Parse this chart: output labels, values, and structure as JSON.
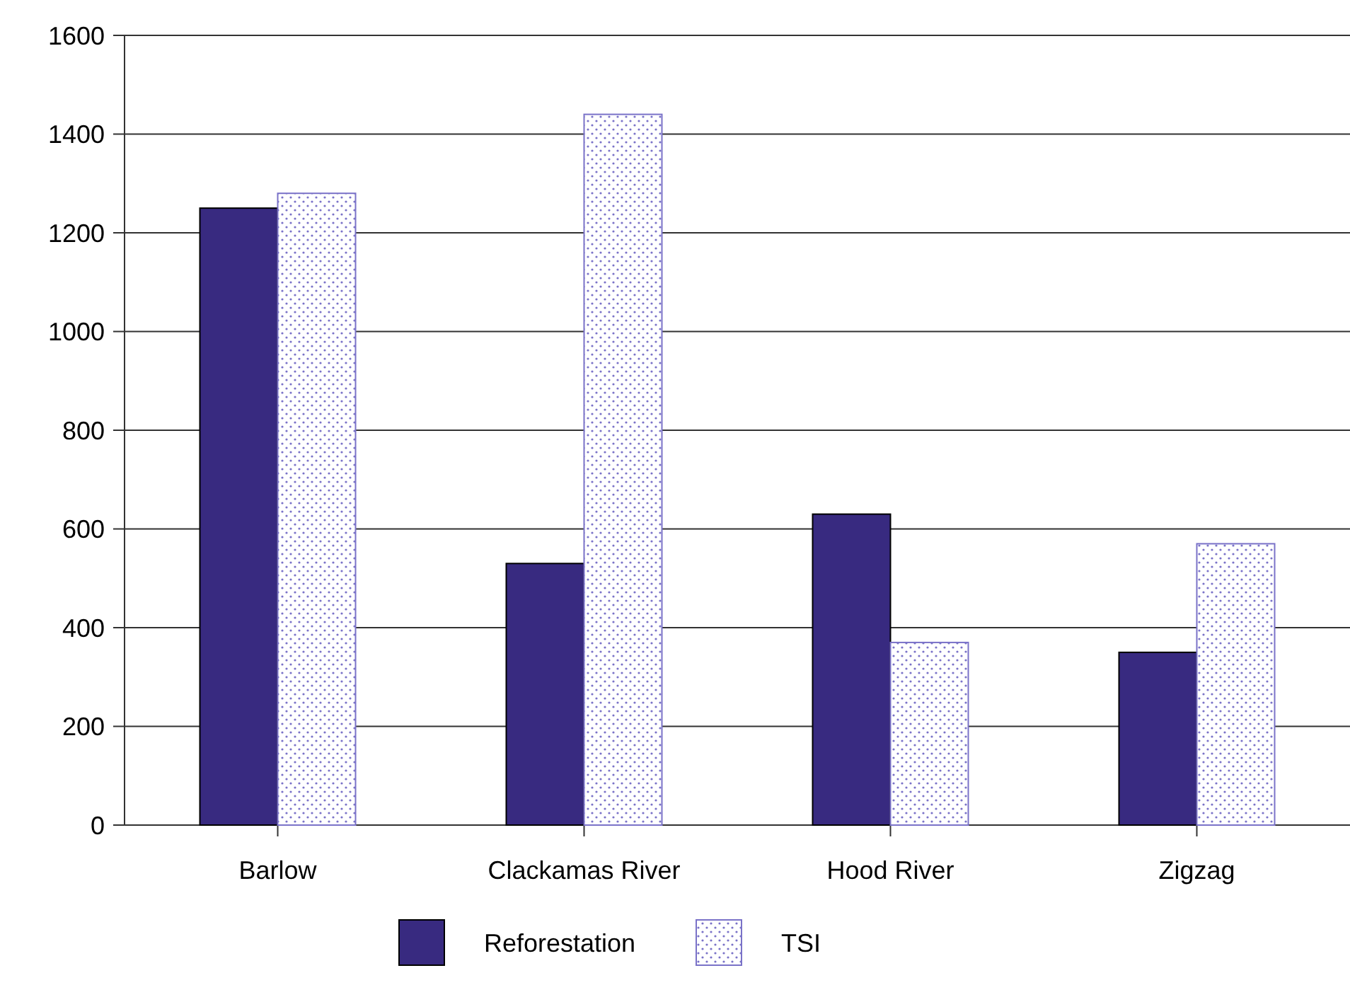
{
  "chart_data": {
    "type": "bar",
    "categories": [
      "Barlow",
      "Clackamas River",
      "Hood River",
      "Zigzag"
    ],
    "series": [
      {
        "name": "Reforestation",
        "color": "#382a80",
        "values": [
          1250,
          530,
          630,
          350
        ]
      },
      {
        "name": "TSI",
        "color": "#7a72c8",
        "values": [
          1280,
          1440,
          370,
          570
        ]
      }
    ],
    "ylim": [
      0,
      1600
    ],
    "yticks": [
      0,
      200,
      400,
      600,
      800,
      1000,
      1200,
      1400,
      1600
    ],
    "grid": "y",
    "legend": "bottom"
  }
}
